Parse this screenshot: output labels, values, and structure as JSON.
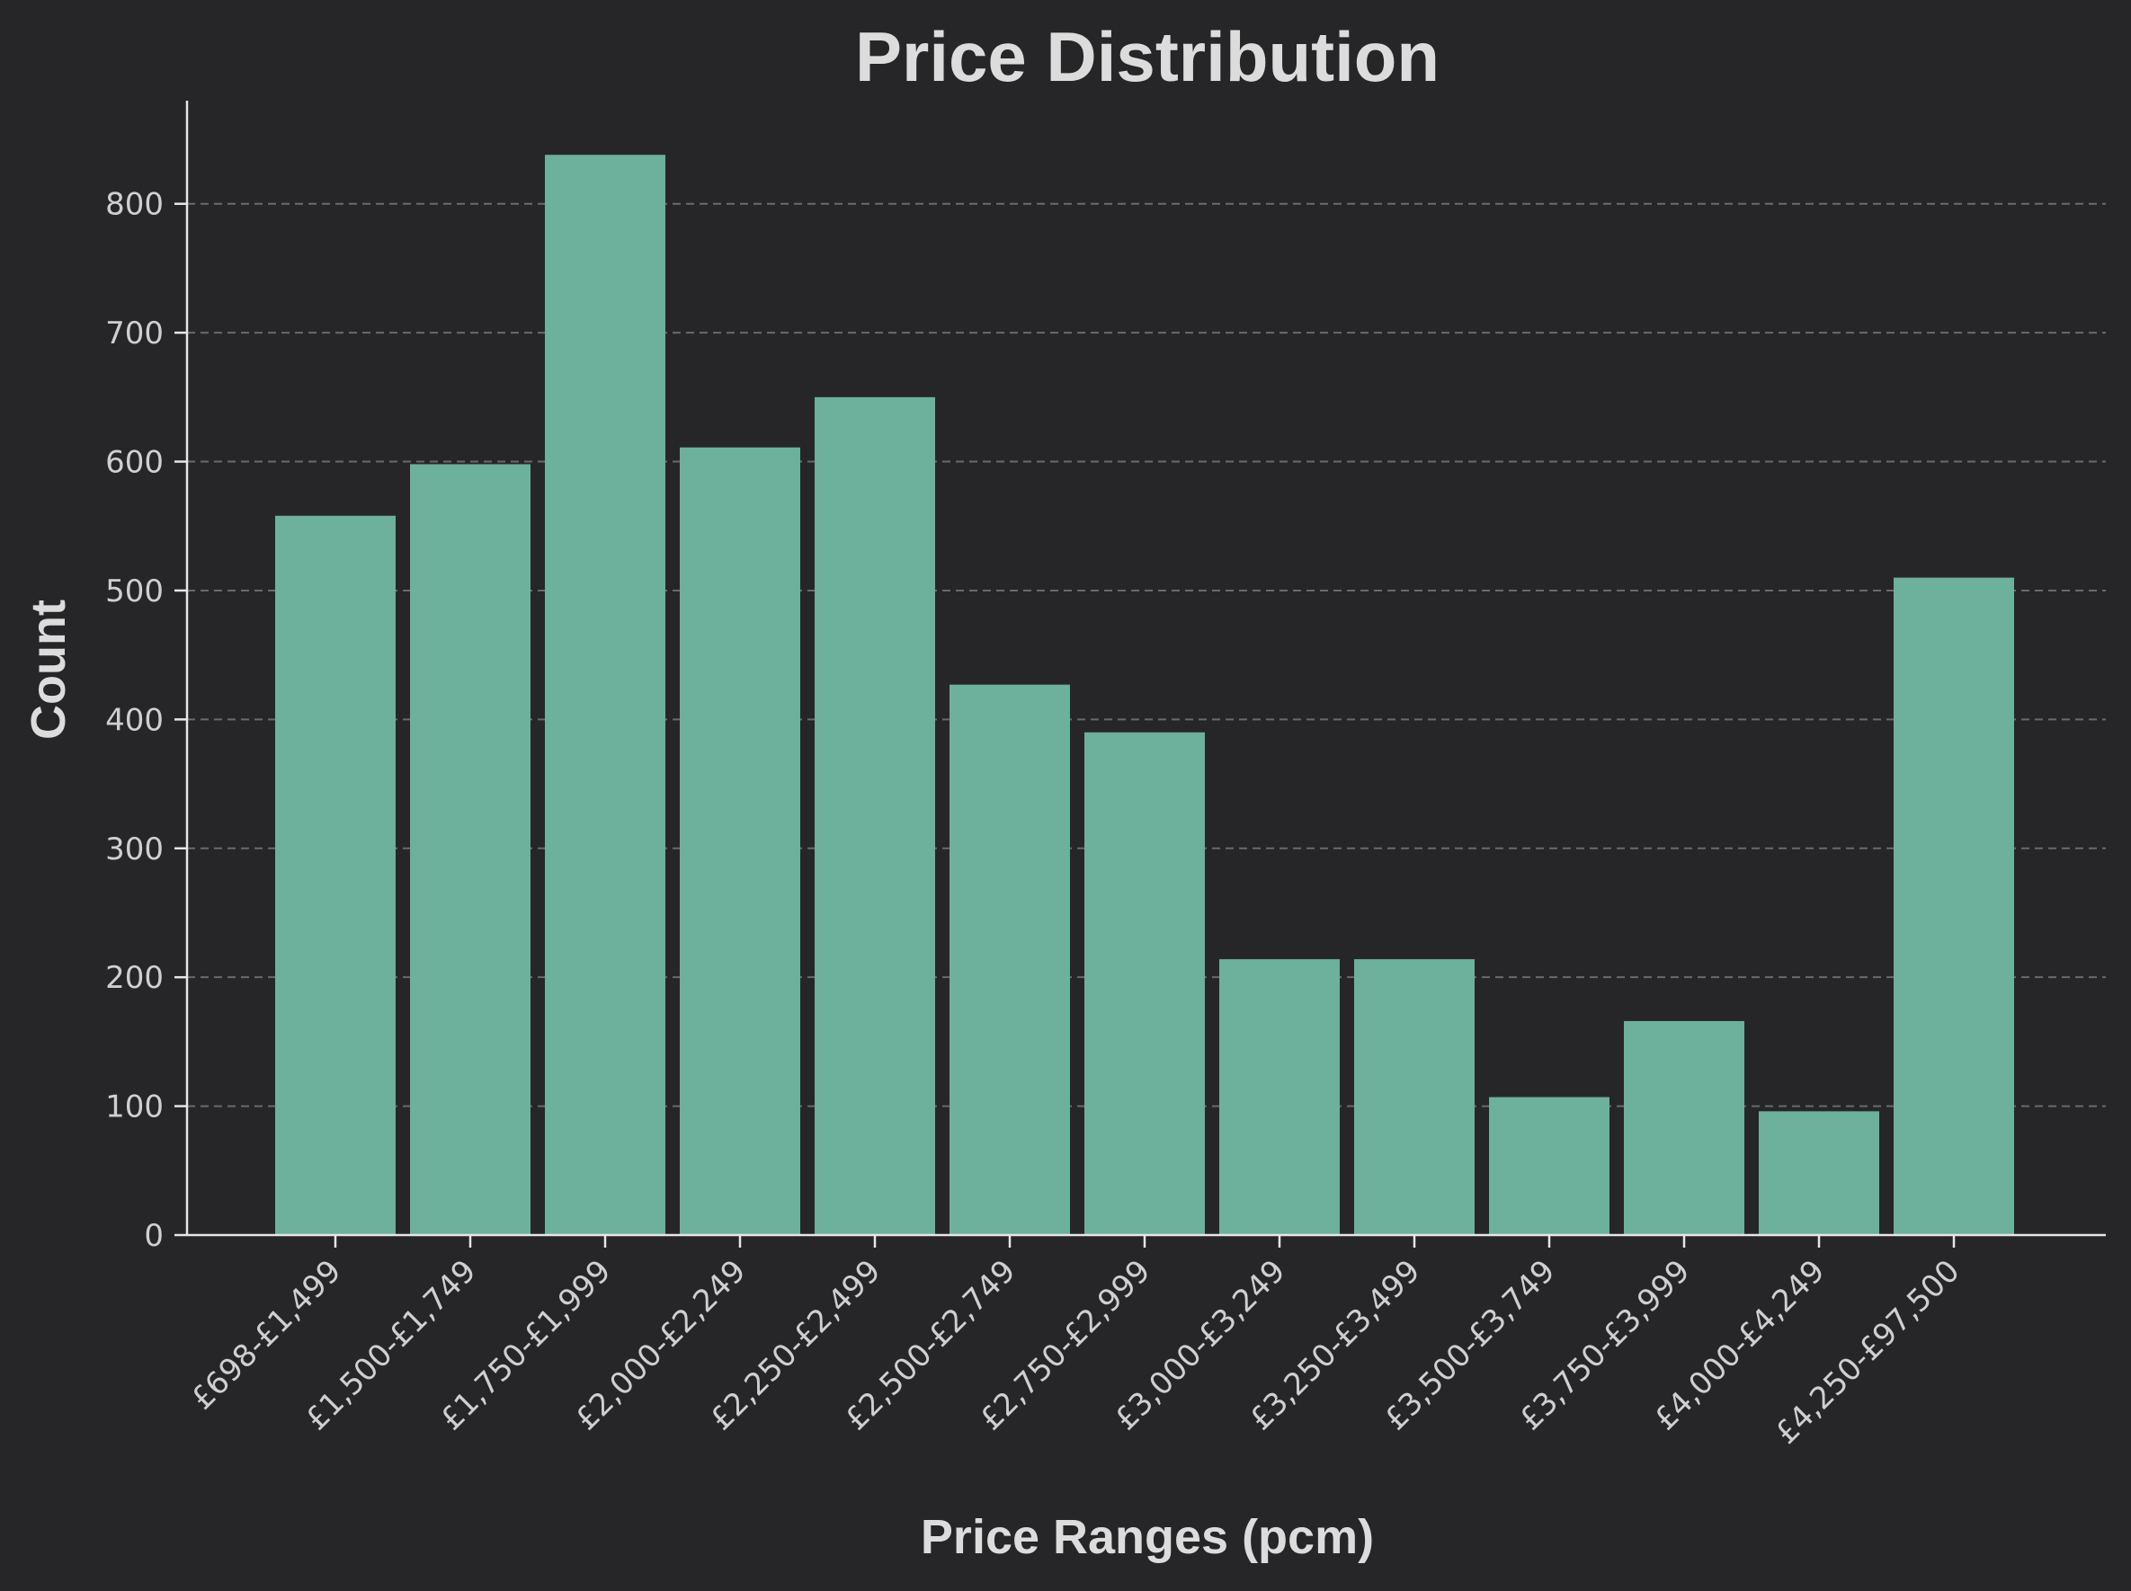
{
  "chart_data": {
    "type": "bar",
    "title": "Price Distribution",
    "xlabel": "Price Ranges (pcm)",
    "ylabel": "Count",
    "categories": [
      "£698-£1,499",
      "£1,500-£1,749",
      "£1,750-£1,999",
      "£2,000-£2,249",
      "£2,250-£2,499",
      "£2,500-£2,749",
      "£2,750-£2,999",
      "£3,000-£3,249",
      "£3,250-£3,499",
      "£3,500-£3,749",
      "£3,750-£3,999",
      "£4,000-£4,249",
      "£4,250-£97,500"
    ],
    "values": [
      558,
      598,
      838,
      611,
      650,
      427,
      390,
      214,
      214,
      107,
      166,
      96,
      510
    ],
    "ylim": [
      0,
      880
    ],
    "yticks": [
      0,
      100,
      200,
      300,
      400,
      500,
      600,
      700,
      800
    ],
    "grid": "horizontal dashed",
    "legend": "none"
  },
  "colors": {
    "background": "#262628",
    "bar": "#6db09b",
    "text": "#dcdcdc"
  }
}
